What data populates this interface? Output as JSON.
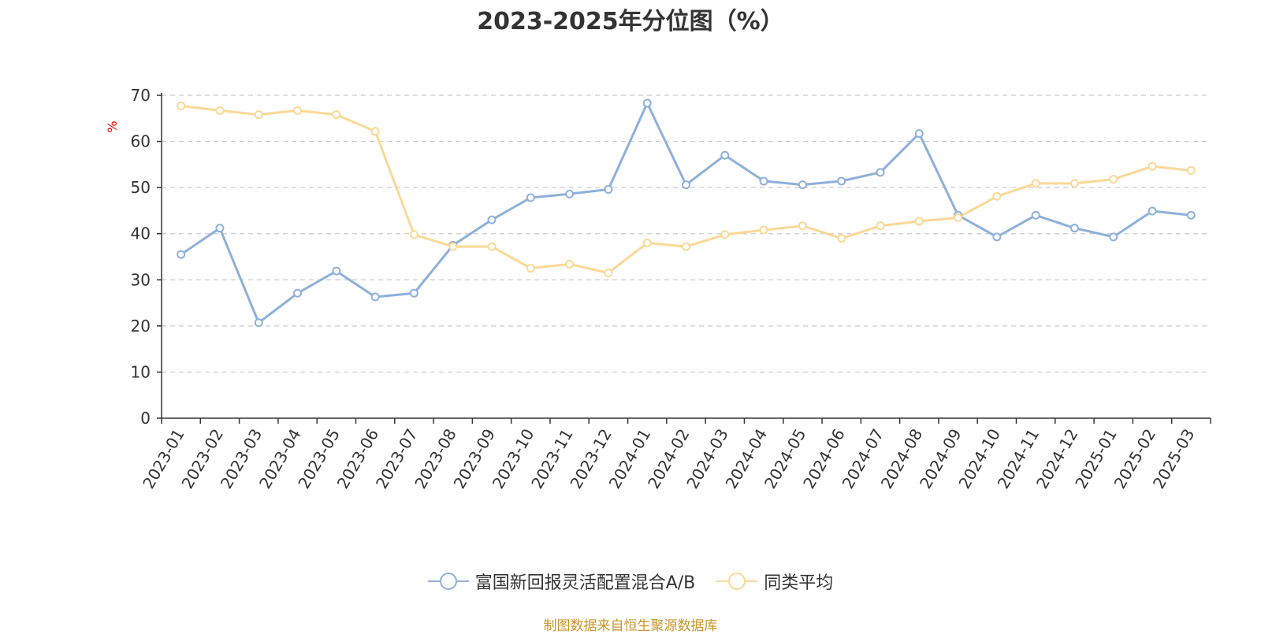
{
  "chart_data": {
    "type": "line",
    "title": "2023-2025年分位图（%）",
    "ylabel": "%",
    "xlabel": "",
    "ylim": [
      0,
      70
    ],
    "yticks": [
      0,
      10,
      20,
      30,
      40,
      50,
      60,
      70
    ],
    "grid": true,
    "legend_position": "bottom-center",
    "categories": [
      "2023-01",
      "2023-02",
      "2023-03",
      "2023-04",
      "2023-05",
      "2023-06",
      "2023-07",
      "2023-08",
      "2023-09",
      "2023-10",
      "2023-11",
      "2023-12",
      "2024-01",
      "2024-02",
      "2024-03",
      "2024-04",
      "2024-05",
      "2024-06",
      "2024-07",
      "2024-08",
      "2024-09",
      "2024-10",
      "2024-11",
      "2024-12",
      "2025-01",
      "2025-02",
      "2025-03"
    ],
    "series": [
      {
        "name": "富国新回报灵活配置混合A/B",
        "color": "#8eb0da",
        "values": [
          35.5,
          41.2,
          20.7,
          27.1,
          31.9,
          26.3,
          27.1,
          37.5,
          43.0,
          47.8,
          48.6,
          49.6,
          68.3,
          50.6,
          57.0,
          51.4,
          50.6,
          51.4,
          53.3,
          61.7,
          44.0,
          39.3,
          44.0,
          41.2,
          39.3,
          44.9,
          44.0
        ]
      },
      {
        "name": "同类平均",
        "color": "#fad996",
        "values": [
          67.7,
          66.7,
          65.8,
          66.7,
          65.8,
          62.2,
          39.8,
          37.2,
          37.2,
          32.5,
          33.4,
          31.5,
          38.0,
          37.2,
          39.8,
          40.8,
          41.7,
          39.0,
          41.7,
          42.7,
          43.5,
          48.1,
          50.9,
          50.9,
          51.8,
          54.6,
          53.7
        ]
      }
    ]
  },
  "footer": {
    "source": "制图数据来自恒生聚源数据库"
  }
}
